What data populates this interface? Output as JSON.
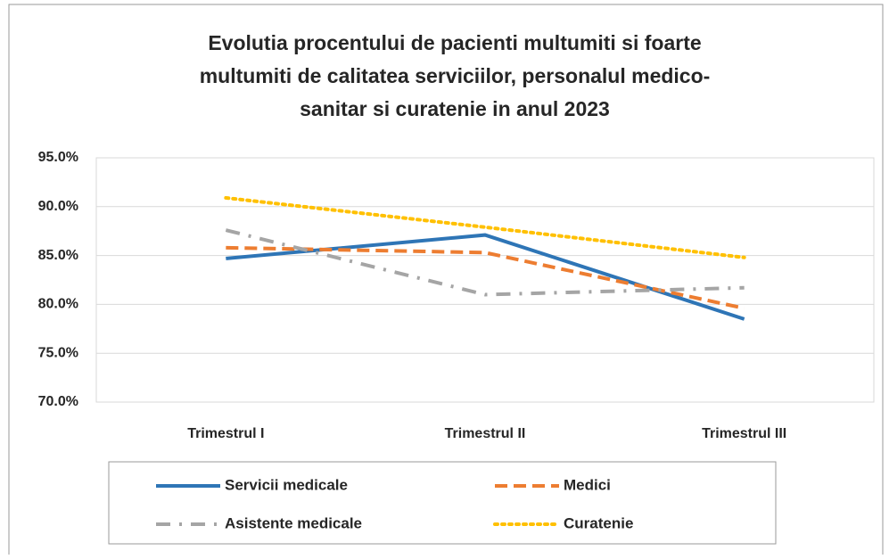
{
  "chart_data": {
    "type": "line",
    "title": [
      "Evolutia procentului de pacienti multumiti si foarte",
      "multumiti de calitatea serviciilor, personalul medico-",
      "sanitar si curatenie in anul 2023"
    ],
    "categories": [
      "Trimestrul I",
      "Trimestrul II",
      "Trimestrul III"
    ],
    "series": [
      {
        "name": "Servicii medicale",
        "color": "#2e75b6",
        "style": "solid",
        "values": [
          84.7,
          87.1,
          78.5
        ]
      },
      {
        "name": "Medici",
        "color": "#ed7d31",
        "style": "dash",
        "values": [
          85.8,
          85.3,
          79.6
        ]
      },
      {
        "name": "Asistente medicale",
        "color": "#a5a5a5",
        "style": "dashdot",
        "values": [
          87.6,
          81.0,
          81.7
        ]
      },
      {
        "name": "Curatenie",
        "color": "#ffc000",
        "style": "dot",
        "values": [
          90.9,
          87.9,
          84.8
        ]
      }
    ],
    "ylim": [
      70,
      95
    ],
    "yticks": [
      {
        "value": 70,
        "label": "70.0%"
      },
      {
        "value": 75,
        "label": "75.0%"
      },
      {
        "value": 80,
        "label": "80.0%"
      },
      {
        "value": 85,
        "label": "85.0%"
      },
      {
        "value": 90,
        "label": "90.0%"
      },
      {
        "value": 95,
        "label": "95.0%"
      }
    ],
    "grid": true,
    "legend": "bottom"
  }
}
